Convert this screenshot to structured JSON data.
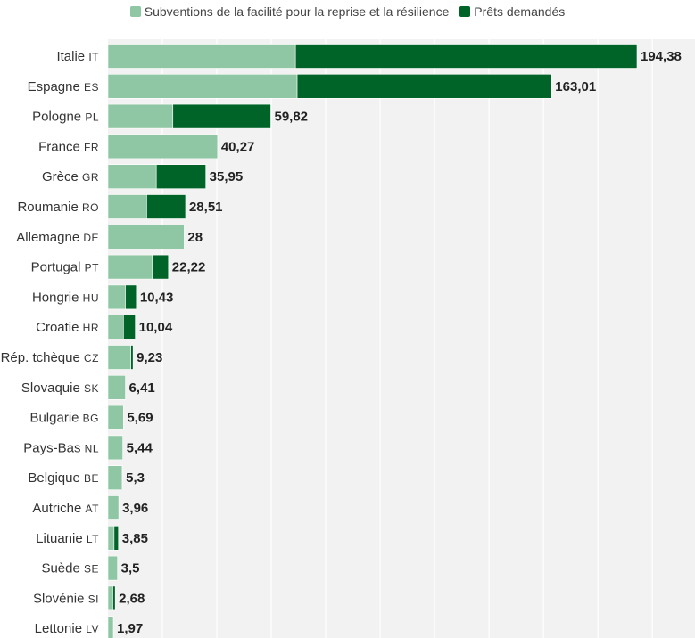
{
  "chart_data": {
    "type": "bar",
    "orientation": "horizontal",
    "stacked": true,
    "categories": [
      {
        "name": "Italie",
        "code": "IT"
      },
      {
        "name": "Espagne",
        "code": "ES"
      },
      {
        "name": "Pologne",
        "code": "PL"
      },
      {
        "name": "France",
        "code": "FR"
      },
      {
        "name": "Grèce",
        "code": "GR"
      },
      {
        "name": "Roumanie",
        "code": "RO"
      },
      {
        "name": "Allemagne",
        "code": "DE"
      },
      {
        "name": "Portugal",
        "code": "PT"
      },
      {
        "name": "Hongrie",
        "code": "HU"
      },
      {
        "name": "Croatie",
        "code": "HR"
      },
      {
        "name": "Rép. tchèque",
        "code": "CZ"
      },
      {
        "name": "Slovaquie",
        "code": "SK"
      },
      {
        "name": "Bulgarie",
        "code": "BG"
      },
      {
        "name": "Pays-Bas",
        "code": "NL"
      },
      {
        "name": "Belgique",
        "code": "BE"
      },
      {
        "name": "Autriche",
        "code": "AT"
      },
      {
        "name": "Lituanie",
        "code": "LT"
      },
      {
        "name": "Suède",
        "code": "SE"
      },
      {
        "name": "Slovénie",
        "code": "SI"
      },
      {
        "name": "Lettonie",
        "code": "LV"
      }
    ],
    "series": [
      {
        "name": "Subventions de la facilité pour la reprise et la résilience",
        "color": "#8fc6a4",
        "values": [
          68.9,
          69.51,
          23.85,
          40.27,
          17.77,
          14.24,
          28,
          16.32,
          6.4,
          5.7,
          8.4,
          6.41,
          5.69,
          5.44,
          5.05,
          3.96,
          2.25,
          3.5,
          1.8,
          1.97
        ]
      },
      {
        "name": "Prêts demandés",
        "color": "#006428",
        "values": [
          125.48,
          93.5,
          35.97,
          0,
          18.18,
          14.27,
          0,
          5.9,
          4.03,
          4.34,
          0.83,
          0,
          0,
          0,
          0.25,
          0,
          1.6,
          0,
          0.88,
          0
        ]
      }
    ],
    "totals": [
      "194,38",
      "163,01",
      "59,82",
      "40,27",
      "35,95",
      "28,51",
      "28",
      "22,22",
      "10,43",
      "10,04",
      "9,23",
      "6,41",
      "5,69",
      "5,44",
      "5,3",
      "3,96",
      "3,85",
      "3,5",
      "2,68",
      "1,97"
    ],
    "xlim": [
      0,
      200
    ],
    "grid": true,
    "legend": "top-center",
    "colors": {
      "plot_bg": "#f2f2f2",
      "grid": "#ffffff",
      "label": "#333333",
      "total": "#222222"
    }
  }
}
